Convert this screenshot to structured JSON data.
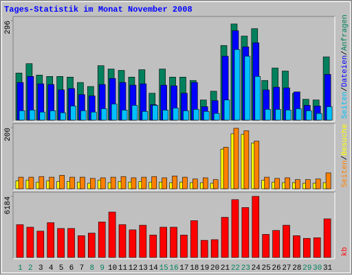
{
  "chart_data": [
    {
      "type": "bar",
      "title": "Tages-Statistik im Monat November 2008",
      "legend_separator": "/",
      "ylim": [
        0,
        296
      ],
      "yticks": [
        296
      ],
      "series": [
        {
          "name": "Anfragen",
          "color": "#00805C",
          "values": [
            140,
            168,
            134,
            130,
            130,
            128,
            112,
            100,
            162,
            152,
            148,
            128,
            150,
            80,
            152,
            128,
            128,
            118,
            60,
            86,
            222,
            286,
            250,
            272,
            118,
            155,
            146,
            80,
            62,
            60,
            188
          ]
        },
        {
          "name": "Dateien",
          "color": "#0000FF",
          "values": [
            112,
            130,
            108,
            106,
            90,
            94,
            76,
            72,
            106,
            124,
            112,
            104,
            108,
            46,
            104,
            102,
            80,
            112,
            40,
            58,
            190,
            266,
            218,
            230,
            90,
            98,
            96,
            84,
            44,
            42,
            136
          ]
        },
        {
          "name": "Seiten",
          "color": "#00C0FF",
          "values": [
            28,
            30,
            24,
            28,
            22,
            42,
            28,
            24,
            34,
            48,
            30,
            44,
            26,
            44,
            30,
            36,
            28,
            32,
            26,
            20,
            60,
            210,
            190,
            130,
            32,
            32,
            30,
            34,
            28,
            20,
            40
          ]
        }
      ]
    },
    {
      "type": "bar",
      "legend_separator": "/",
      "ylim": [
        0,
        200
      ],
      "yticks": [
        200
      ],
      "series": [
        {
          "name": "Besuche",
          "color": "#FFFF00",
          "values": [
            26,
            28,
            22,
            26,
            24,
            24,
            22,
            18,
            28,
            20,
            24,
            22,
            24,
            22,
            22,
            20,
            22,
            20,
            20,
            18,
            130,
            180,
            178,
            150,
            28,
            22,
            20,
            20,
            18,
            18,
            20
          ]
        },
        {
          "name": "Seiten",
          "color": "#FF8000",
          "values": [
            38,
            38,
            40,
            38,
            44,
            38,
            38,
            34,
            36,
            38,
            40,
            36,
            38,
            40,
            36,
            42,
            38,
            32,
            36,
            30,
            136,
            198,
            190,
            156,
            38,
            34,
            36,
            30,
            30,
            32,
            52
          ]
        }
      ]
    },
    {
      "type": "bar",
      "ylim": [
        0,
        6184
      ],
      "yticks": [
        6184
      ],
      "categories": [
        "1",
        "2",
        "3",
        "4",
        "5",
        "6",
        "7",
        "8",
        "9",
        "10",
        "11",
        "12",
        "13",
        "14",
        "15",
        "16",
        "17",
        "18",
        "19",
        "20",
        "21",
        "22",
        "23",
        "24",
        "25",
        "26",
        "27",
        "28",
        "29",
        "30",
        "31"
      ],
      "weekend": [
        "1",
        "2",
        "8",
        "9",
        "15",
        "16",
        "22",
        "23",
        "29",
        "30"
      ],
      "weekend_color": "#00805C",
      "series": [
        {
          "name": "kb",
          "color": "#FF0000",
          "values": [
            3320,
            3060,
            2660,
            3520,
            2930,
            2930,
            2200,
            2460,
            3590,
            4590,
            3320,
            2790,
            3260,
            2260,
            3060,
            3060,
            2260,
            3720,
            1730,
            1800,
            4060,
            5850,
            5050,
            6184,
            2330,
            2730,
            3260,
            2200,
            1930,
            1990,
            3900
          ]
        }
      ]
    }
  ]
}
